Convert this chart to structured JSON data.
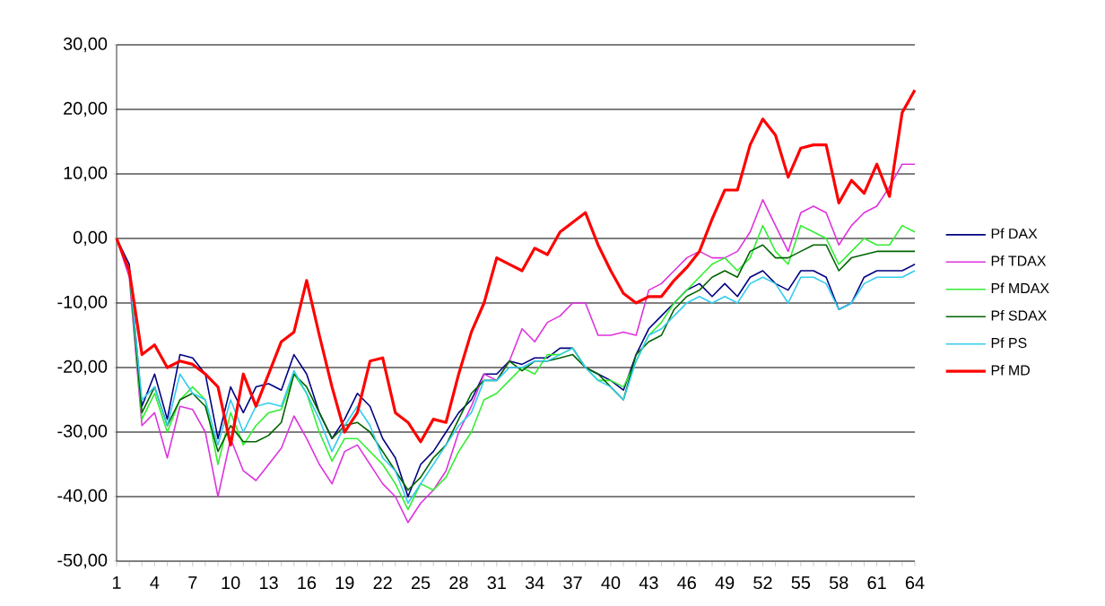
{
  "chart_data": {
    "type": "line",
    "categories": [
      "1",
      null,
      null,
      "4",
      null,
      null,
      "7",
      null,
      null,
      "10",
      null,
      null,
      "13",
      null,
      null,
      "16",
      null,
      null,
      "19",
      null,
      null,
      "22",
      null,
      null,
      "25",
      null,
      null,
      "28",
      null,
      null,
      "31",
      null,
      null,
      "34",
      null,
      null,
      "37",
      null,
      null,
      "40",
      null,
      null,
      "43",
      null,
      null,
      "46",
      null,
      null,
      "49",
      null,
      null,
      "52",
      null,
      null,
      "55",
      null,
      null,
      "58",
      null,
      null,
      "61",
      null,
      null,
      "64"
    ],
    "series": [
      {
        "name": "Pf DAX",
        "color": "#000080",
        "values": [
          0,
          -4,
          -26,
          -21,
          -28,
          -18,
          -18.5,
          -21,
          -31,
          -23,
          -27,
          -23,
          -22.5,
          -23.5,
          -18,
          -21,
          -27,
          -31,
          -28,
          -24,
          -26,
          -31,
          -34,
          -40,
          -35,
          -33,
          -30,
          -27,
          -25,
          -21,
          -21,
          -19,
          -19.5,
          -18.5,
          -18.5,
          -17,
          -17,
          -20,
          -21,
          -22,
          -23.5,
          -18,
          -14,
          -12,
          -10,
          -8,
          -7,
          -9,
          -7,
          -9,
          -6,
          -5,
          -7,
          -8,
          -5,
          -5,
          -6,
          -11,
          -10,
          -6,
          -5,
          -5,
          -5,
          -4
        ]
      },
      {
        "name": "Pf TDAX",
        "color": "#dd33dd",
        "values": [
          0,
          -6,
          -29,
          -27,
          -34,
          -26,
          -26.5,
          -30,
          -40,
          -31,
          -36,
          -37.5,
          -35,
          -32.5,
          -27.5,
          -31,
          -35,
          -38,
          -33,
          -32,
          -35,
          -38,
          -40,
          -44,
          -41,
          -39,
          -36,
          -30,
          -26,
          -21,
          -22,
          -19,
          -14,
          -16,
          -13,
          -12,
          -10,
          -10,
          -15,
          -15,
          -14.5,
          -15,
          -8,
          -7,
          -5,
          -3,
          -2,
          -3,
          -3,
          -2,
          1,
          6,
          2,
          -2,
          4,
          5,
          4,
          -1,
          2,
          4,
          5,
          8,
          11.5,
          11.5
        ]
      },
      {
        "name": "Pf MDAX",
        "color": "#33ee33",
        "values": [
          0,
          -5,
          -28,
          -24,
          -30,
          -25,
          -23,
          -25,
          -35,
          -27,
          -32,
          -29,
          -27,
          -26.5,
          -21,
          -24,
          -30,
          -34.5,
          -31,
          -31,
          -33,
          -35,
          -38,
          -42,
          -38,
          -39,
          -37,
          -33,
          -30,
          -25,
          -24,
          -22,
          -20,
          -21,
          -18,
          -18,
          -17,
          -20,
          -22,
          -22,
          -23,
          -19,
          -15,
          -13,
          -10,
          -8,
          -6,
          -4,
          -3,
          -5,
          -3,
          2,
          -2,
          -4,
          2,
          1,
          0,
          -4,
          -2,
          0,
          -1,
          -1,
          2,
          1
        ]
      },
      {
        "name": "Pf SDAX",
        "color": "#006400",
        "values": [
          0,
          -5,
          -27,
          -23,
          -29,
          -25,
          -24,
          -26,
          -33,
          -29,
          -31.5,
          -31.5,
          -30.5,
          -28.5,
          -21,
          -23,
          -27,
          -31,
          -29,
          -28.5,
          -30,
          -33,
          -36,
          -39,
          -37,
          -34,
          -32,
          -28,
          -24,
          -22,
          -22,
          -19,
          -20.5,
          -19,
          -19,
          -18.5,
          -18,
          -20,
          -21,
          -23,
          -25,
          -18,
          -16,
          -15,
          -11,
          -9,
          -8,
          -6,
          -5,
          -6,
          -2,
          -1,
          -3,
          -3,
          -2,
          -1,
          -1,
          -5,
          -3,
          -2.5,
          -2,
          -2,
          -2,
          -2
        ]
      },
      {
        "name": "Pf PS",
        "color": "#33ccee",
        "values": [
          0,
          -5,
          -25,
          -23,
          -29,
          -21,
          -24,
          -25,
          -32,
          -25,
          -30,
          -26,
          -25.5,
          -26,
          -20.5,
          -24,
          -28,
          -33,
          -29,
          -26,
          -29,
          -34,
          -36,
          -41,
          -38,
          -35,
          -32,
          -29,
          -27,
          -22,
          -22,
          -20,
          -20,
          -19,
          -19,
          -18,
          -17,
          -20,
          -22,
          -23,
          -25,
          -19,
          -15,
          -14,
          -12,
          -10,
          -9,
          -10,
          -9,
          -10,
          -7,
          -6,
          -7,
          -10,
          -6,
          -6,
          -7,
          -11,
          -10,
          -7,
          -6,
          -6,
          -6,
          -5
        ]
      },
      {
        "name": "Pf MD",
        "color": "#ff0000",
        "values": [
          0,
          -5,
          -18,
          -16.5,
          -20,
          -19,
          -19.5,
          -21,
          -23,
          -32,
          -21,
          -26,
          -21,
          -16,
          -14.5,
          -6.5,
          -15,
          -23,
          -30,
          -27,
          -19,
          -18.5,
          -27,
          -28.5,
          -31.5,
          -28,
          -28.5,
          -21,
          -14.5,
          -10,
          -3,
          -4,
          -5,
          -1.5,
          -2.5,
          1,
          2.5,
          4,
          -1,
          -5,
          -8.5,
          -10,
          -9,
          -9,
          -6.5,
          -4.5,
          -2,
          3,
          7.5,
          7.5,
          14.5,
          18.5,
          16,
          9.5,
          14,
          14.5,
          14.5,
          5.5,
          9,
          7,
          11.5,
          6.5,
          19.5,
          23
        ]
      }
    ],
    "ylim": [
      -50,
      30
    ],
    "yticks": [
      {
        "value": -50,
        "label": "-50,00"
      },
      {
        "value": -40,
        "label": "-40,00"
      },
      {
        "value": -30,
        "label": "-30,00"
      },
      {
        "value": -20,
        "label": "-20,00"
      },
      {
        "value": -10,
        "label": "-10,00"
      },
      {
        "value": 0,
        "label": "0,00"
      },
      {
        "value": 10,
        "label": "10,00"
      },
      {
        "value": 20,
        "label": "20,00"
      },
      {
        "value": 30,
        "label": "30,00"
      }
    ],
    "grid": "y",
    "legend": "right",
    "marker": "none",
    "line_style": "solid"
  }
}
